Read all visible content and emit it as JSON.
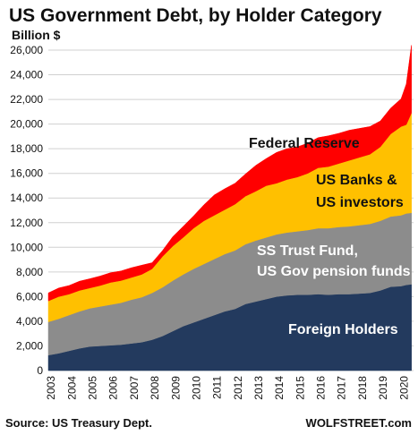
{
  "chart_data": {
    "type": "area",
    "title": "US Government Debt, by Holder Category",
    "subtitle": "Billion $",
    "stacked": true,
    "grid": "horizontal",
    "ylim": [
      0,
      26000
    ],
    "yticks": [
      0,
      2000,
      4000,
      6000,
      8000,
      10000,
      12000,
      14000,
      16000,
      18000,
      20000,
      22000,
      24000,
      26000
    ],
    "ytick_labels": [
      "0",
      "2,000",
      "4,000",
      "6,000",
      "8,000",
      "10,000",
      "12,000",
      "14,000",
      "16,000",
      "18,000",
      "20,000",
      "22,000",
      "24,000",
      "26,000"
    ],
    "x": [
      2003,
      2003.5,
      2004,
      2004.5,
      2005,
      2005.5,
      2006,
      2006.5,
      2007,
      2007.5,
      2008,
      2008.5,
      2009,
      2009.5,
      2010,
      2010.5,
      2011,
      2011.5,
      2012,
      2012.5,
      2013,
      2013.5,
      2014,
      2014.5,
      2015,
      2015.5,
      2016,
      2016.5,
      2017,
      2017.5,
      2018,
      2018.5,
      2019,
      2019.5,
      2020,
      2020.25,
      2020.5
    ],
    "xlim": [
      2003,
      2020.6
    ],
    "xticks": [
      2003,
      2004,
      2005,
      2006,
      2007,
      2008,
      2009,
      2010,
      2011,
      2012,
      2013,
      2014,
      2015,
      2016,
      2017,
      2018,
      2019,
      2020
    ],
    "xtick_labels": [
      "2003",
      "2004",
      "2005",
      "2006",
      "2007",
      "2008",
      "2009",
      "2010",
      "2011",
      "2012",
      "2013",
      "2014",
      "2015",
      "2016",
      "2017",
      "2018",
      "2019",
      "2020"
    ],
    "series": [
      {
        "name": "Foreign Holders",
        "color": "#233a5e",
        "values": [
          1250,
          1400,
          1600,
          1800,
          1950,
          2000,
          2050,
          2100,
          2200,
          2300,
          2500,
          2800,
          3200,
          3600,
          3900,
          4200,
          4500,
          4800,
          5000,
          5400,
          5600,
          5800,
          6000,
          6100,
          6150,
          6150,
          6200,
          6150,
          6200,
          6200,
          6250,
          6300,
          6500,
          6800,
          6850,
          6950,
          7000
        ]
      },
      {
        "name": "SS Trust Fund, US Gov pension funds",
        "color": "#8c8c8c",
        "values": [
          2700,
          2800,
          2900,
          3000,
          3100,
          3200,
          3300,
          3400,
          3550,
          3650,
          3800,
          3950,
          4100,
          4200,
          4350,
          4450,
          4550,
          4650,
          4750,
          4850,
          4950,
          5000,
          5050,
          5100,
          5150,
          5250,
          5350,
          5400,
          5450,
          5500,
          5550,
          5600,
          5650,
          5700,
          5750,
          5800,
          5800
        ]
      },
      {
        "name": "US Banks & US investors",
        "color": "#ffc000",
        "values": [
          1700,
          1800,
          1700,
          1700,
          1650,
          1700,
          1800,
          1800,
          1800,
          1850,
          1950,
          2500,
          2800,
          3000,
          3300,
          3500,
          3550,
          3600,
          3750,
          3900,
          4000,
          4200,
          4150,
          4300,
          4400,
          4600,
          4900,
          5000,
          5150,
          5350,
          5500,
          5650,
          6000,
          6700,
          7200,
          7200,
          8100
        ]
      },
      {
        "name": "Federal Reserve",
        "color": "#ff0000",
        "values": [
          650,
          700,
          700,
          750,
          750,
          770,
          790,
          780,
          790,
          750,
          500,
          480,
          770,
          900,
          1000,
          1300,
          1650,
          1700,
          1700,
          1800,
          2100,
          2200,
          2500,
          2500,
          2450,
          2450,
          2450,
          2500,
          2450,
          2450,
          2350,
          2250,
          2100,
          2100,
          2250,
          3300,
          5500
        ]
      }
    ],
    "series_labels": [
      "Federal Reserve",
      "US Banks &",
      "US investors",
      "SS Trust Fund,",
      "US Gov pension funds",
      "Foreign Holders"
    ]
  },
  "footer": {
    "source": "Source: US Treasury Dept.",
    "brand": "WOLFSTREET.com"
  }
}
